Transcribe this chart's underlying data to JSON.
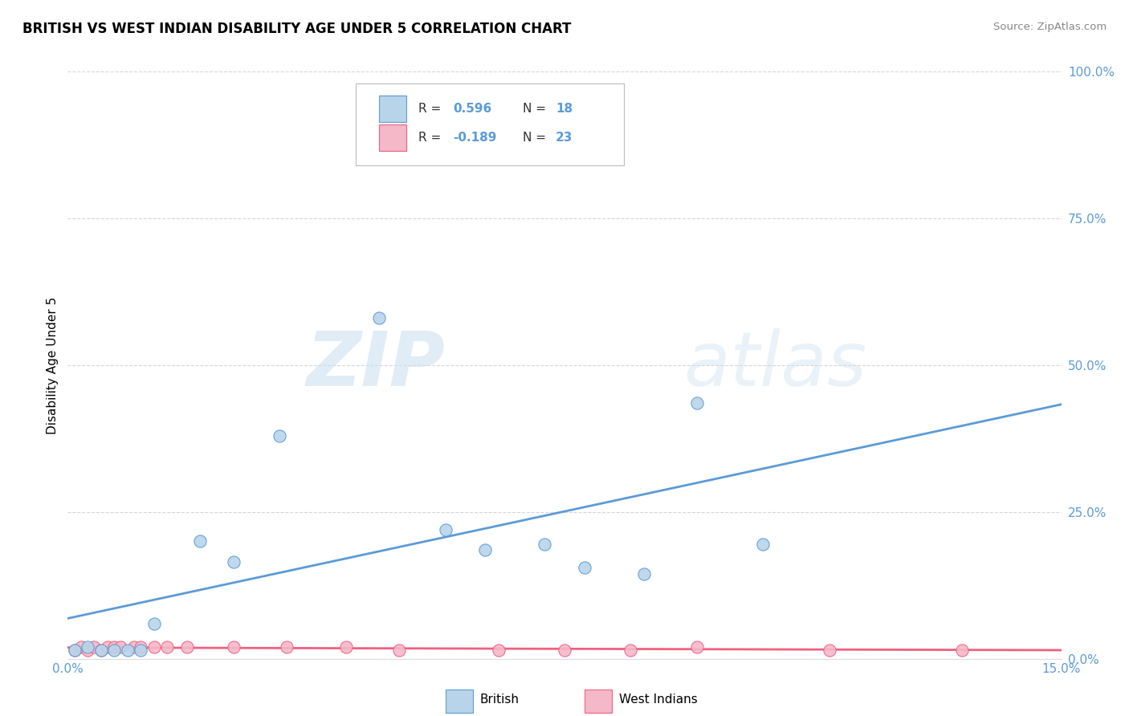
{
  "title": "BRITISH VS WEST INDIAN DISABILITY AGE UNDER 5 CORRELATION CHART",
  "source": "Source: ZipAtlas.com",
  "ylabel": "Disability Age Under 5",
  "xlim": [
    0.0,
    0.15
  ],
  "ylim": [
    0.0,
    1.0
  ],
  "yticks": [
    0.0,
    0.25,
    0.5,
    0.75,
    1.0
  ],
  "yticklabels": [
    "0.0%",
    "25.0%",
    "50.0%",
    "75.0%",
    "100.0%"
  ],
  "xtick_left_label": "0.0%",
  "xtick_right_label": "15.0%",
  "legend_r_british": "0.596",
  "legend_n_british": "18",
  "legend_r_west_indian": "-0.189",
  "legend_n_west_indian": "23",
  "british_color": "#b8d4ea",
  "west_indian_color": "#f4b8c8",
  "british_line_color": "#5b9bd5",
  "west_indian_line_color": "#f06080",
  "watermark_zip": "ZIP",
  "watermark_atlas": "atlas",
  "british_x": [
    0.001,
    0.003,
    0.005,
    0.007,
    0.009,
    0.011,
    0.013,
    0.02,
    0.025,
    0.032,
    0.047,
    0.057,
    0.063,
    0.072,
    0.078,
    0.087,
    0.095,
    0.105
  ],
  "british_y": [
    0.015,
    0.02,
    0.015,
    0.015,
    0.015,
    0.015,
    0.06,
    0.2,
    0.165,
    0.38,
    0.58,
    0.22,
    0.185,
    0.195,
    0.155,
    0.145,
    0.435,
    0.195
  ],
  "west_indian_x": [
    0.001,
    0.002,
    0.003,
    0.004,
    0.005,
    0.006,
    0.007,
    0.008,
    0.01,
    0.011,
    0.013,
    0.015,
    0.018,
    0.025,
    0.033,
    0.042,
    0.05,
    0.065,
    0.075,
    0.085,
    0.095,
    0.115,
    0.135
  ],
  "west_indian_y": [
    0.015,
    0.02,
    0.015,
    0.02,
    0.015,
    0.02,
    0.02,
    0.02,
    0.02,
    0.02,
    0.02,
    0.02,
    0.02,
    0.02,
    0.02,
    0.02,
    0.015,
    0.015,
    0.015,
    0.015,
    0.02,
    0.015,
    0.015
  ],
  "background_color": "#ffffff",
  "grid_color": "#cccccc",
  "marker_size": 120
}
